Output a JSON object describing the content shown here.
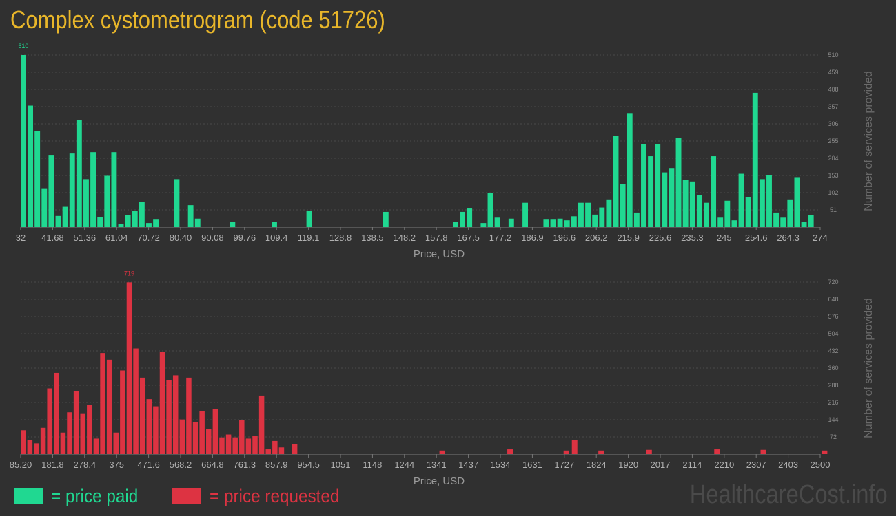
{
  "title": "Complex cystometrogram (code 51726)",
  "legend": {
    "paid_label": "= price paid",
    "requested_label": "= price requested"
  },
  "watermark": "HealthcareCost.info",
  "colors": {
    "paid": "#20d891",
    "requested": "#dd3342",
    "title": "#e8b62a",
    "background": "#303030"
  },
  "chart_data": [
    {
      "type": "bar",
      "series": [
        {
          "values": [
            510,
            360,
            285,
            115,
            212,
            33,
            60,
            218,
            318,
            142,
            222,
            30,
            152,
            222,
            10,
            35,
            47,
            75,
            12,
            22,
            0,
            0,
            142,
            0,
            65,
            25,
            0,
            0,
            0,
            0,
            15,
            0,
            0,
            0,
            0,
            0,
            15,
            0,
            0,
            0,
            0,
            47,
            0,
            0,
            0,
            0,
            0,
            0,
            0,
            0,
            0,
            0,
            45,
            0,
            0,
            0,
            0,
            0,
            0,
            0,
            0,
            0,
            15,
            45,
            55,
            0,
            12,
            100,
            28,
            0,
            25,
            0,
            72,
            0,
            0,
            22,
            22,
            25,
            20,
            32,
            72,
            72,
            37,
            58,
            82,
            270,
            128,
            338,
            43,
            245,
            210,
            245,
            162,
            175,
            265,
            140,
            135,
            95,
            72,
            210,
            28,
            78,
            20,
            158,
            88,
            398,
            142,
            155,
            43,
            28,
            82,
            148,
            15,
            35
          ]
        }
      ],
      "bin_start": 32,
      "bin_width": 2.1097,
      "x_ticks": [
        "32",
        "41.68",
        "51.36",
        "61.04",
        "70.72",
        "80.40",
        "90.08",
        "99.76",
        "109.4",
        "119.1",
        "128.8",
        "138.5",
        "148.2",
        "157.8",
        "167.5",
        "177.2",
        "186.9",
        "196.6",
        "206.2",
        "215.9",
        "225.6",
        "235.3",
        "245",
        "254.6",
        "264.3",
        "274"
      ],
      "y_ticks": [
        "51",
        "102",
        "153",
        "204",
        "255",
        "306",
        "357",
        "408",
        "459",
        "510"
      ],
      "ylim": [
        0,
        510
      ],
      "peak_label": "510",
      "xlabel": "Price, USD",
      "ylabel": "Number of services provided"
    },
    {
      "type": "bar",
      "series": [
        {
          "values": [
            100,
            60,
            45,
            110,
            275,
            340,
            90,
            175,
            265,
            168,
            205,
            65,
            423,
            395,
            90,
            350,
            719,
            442,
            320,
            230,
            200,
            428,
            310,
            330,
            145,
            320,
            135,
            180,
            105,
            190,
            70,
            82,
            70,
            142,
            65,
            75,
            245,
            20,
            55,
            28,
            0,
            42,
            0,
            0,
            0,
            0,
            0,
            0,
            0,
            0,
            0,
            0,
            0,
            0,
            0,
            0,
            0,
            0,
            0,
            0,
            0,
            0,
            0,
            0,
            0,
            0,
            0,
            0,
            0,
            0,
            0,
            0,
            0,
            0,
            0,
            0,
            0,
            0,
            0,
            0,
            0,
            0,
            0,
            0,
            0,
            0,
            0,
            0,
            0,
            0,
            0,
            0,
            0,
            0,
            0,
            0,
            0,
            0,
            0,
            0,
            0,
            0,
            0,
            0,
            0,
            0,
            0,
            0,
            0,
            0,
            0,
            0,
            0,
            0,
            0,
            0,
            0,
            0,
            0,
            0,
            0,
            0,
            0,
            0,
            0,
            0,
            0,
            0,
            0,
            0,
            0,
            0,
            0,
            0,
            0,
            0,
            0,
            0,
            0,
            0,
            0,
            0,
            0,
            0,
            0,
            0,
            0,
            0,
            0,
            0,
            0,
            0,
            0,
            0,
            0,
            0,
            0,
            0,
            0,
            0,
            0,
            0,
            0,
            0,
            0,
            0,
            0,
            0,
            0,
            0,
            0,
            0,
            0,
            0,
            0,
            0,
            0,
            0,
            0,
            0,
            0,
            0,
            0,
            0,
            0,
            0,
            0,
            0,
            0,
            0,
            0,
            0,
            0,
            0,
            0,
            0,
            0,
            0,
            0,
            0,
            0,
            0,
            0,
            0,
            0,
            0,
            0,
            0,
            0,
            0,
            0,
            0,
            0,
            0,
            0,
            0,
            0,
            0,
            0,
            0,
            0,
            0,
            0,
            0,
            0,
            0,
            0,
            0,
            0,
            0,
            0,
            0,
            0,
            0,
            0,
            0,
            0,
            0,
            0,
            0,
            0,
            0,
            0,
            0,
            0,
            0,
            0,
            0,
            0,
            0,
            0,
            0,
            0,
            0,
            0,
            0,
            0,
            0,
            0,
            0,
            0
          ]
        }
      ],
      "sparse_points": [
        [
          1350,
          15
        ],
        [
          1555,
          20
        ],
        [
          1725,
          15
        ],
        [
          1750,
          58
        ],
        [
          1830,
          15
        ],
        [
          1975,
          18
        ],
        [
          2180,
          20
        ],
        [
          2320,
          18
        ],
        [
          2505,
          15
        ]
      ],
      "bin_start": 85.2,
      "bin_width": 20.0,
      "x_ticks": [
        "85.20",
        "181.8",
        "278.4",
        "375",
        "471.6",
        "568.2",
        "664.8",
        "761.3",
        "857.9",
        "954.5",
        "1051",
        "1148",
        "1244",
        "1341",
        "1437",
        "1534",
        "1631",
        "1727",
        "1824",
        "1920",
        "2017",
        "2114",
        "2210",
        "2307",
        "2403",
        "2500"
      ],
      "y_ticks": [
        "72",
        "144",
        "216",
        "288",
        "360",
        "432",
        "504",
        "576",
        "648",
        "720"
      ],
      "ylim": [
        0,
        720
      ],
      "peak_label": "719",
      "xlabel": "Price, USD",
      "ylabel": "Number of services provided"
    }
  ]
}
